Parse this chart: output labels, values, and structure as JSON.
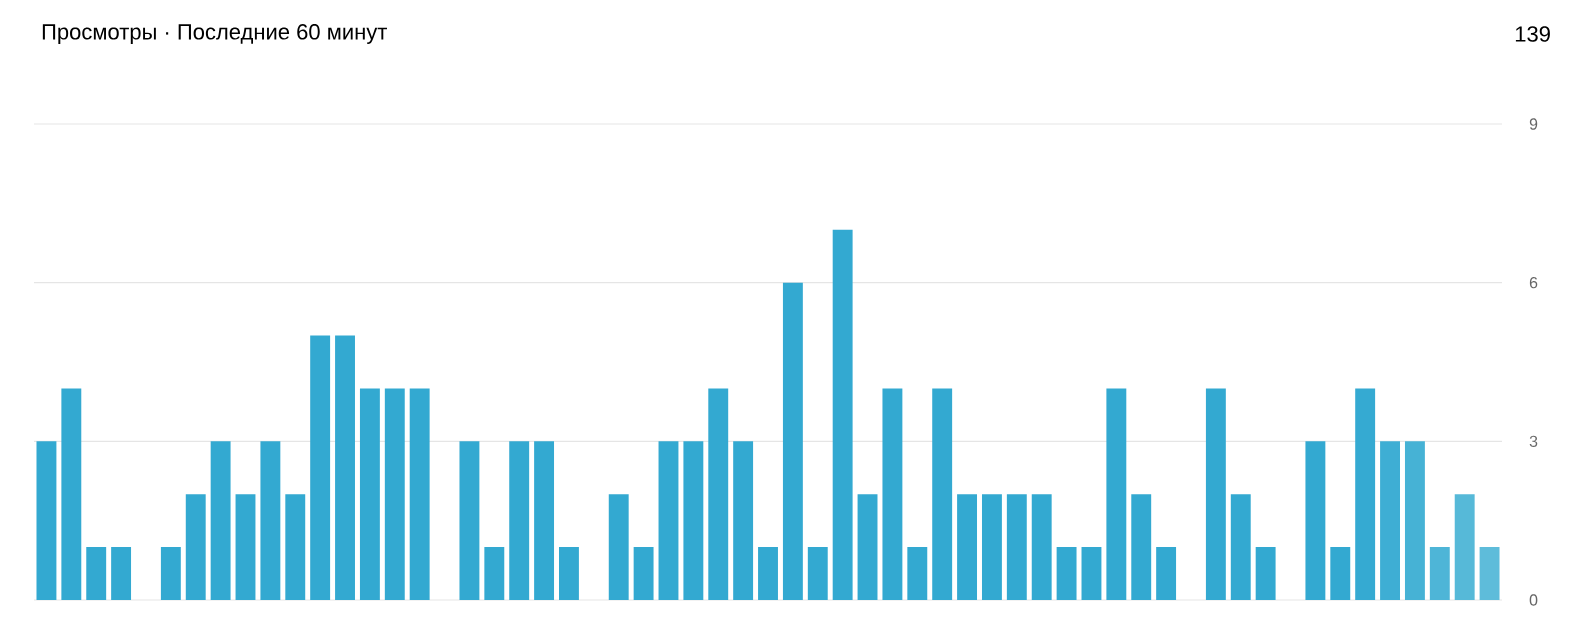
{
  "chart_data": {
    "type": "bar",
    "title": "Просмотры · Последние 60 минут",
    "annotations": [
      "139"
    ],
    "categories": [
      null,
      null,
      null,
      null,
      null,
      null,
      null,
      null,
      null,
      null,
      null,
      null,
      null,
      null,
      null,
      null,
      null,
      null,
      null,
      null,
      null,
      null,
      null,
      null,
      null,
      null,
      null,
      null,
      null,
      null,
      null,
      null,
      null,
      null,
      null,
      null,
      null,
      null,
      null,
      null,
      null,
      null,
      null,
      null,
      null,
      null,
      null,
      null,
      null,
      null,
      null,
      null,
      null,
      null,
      null,
      null,
      null,
      null,
      null
    ],
    "values": [
      3,
      4,
      1,
      1,
      0,
      1,
      2,
      3,
      2,
      3,
      2,
      5,
      5,
      4,
      4,
      4,
      0,
      3,
      1,
      3,
      3,
      1,
      0,
      2,
      1,
      3,
      3,
      4,
      3,
      1,
      6,
      1,
      7,
      2,
      4,
      1,
      4,
      2,
      2,
      2,
      2,
      1,
      1,
      4,
      2,
      1,
      0,
      4,
      2,
      1,
      0,
      3,
      1,
      4,
      3,
      3,
      1,
      2,
      1
    ],
    "colors": [
      "#33a9d1",
      "#33a9d1",
      "#33a9d1",
      "#33a9d1",
      "#33a9d1",
      "#33a9d1",
      "#33a9d1",
      "#33a9d1",
      "#33a9d1",
      "#33a9d1",
      "#33a9d1",
      "#33a9d1",
      "#33a9d1",
      "#33a9d1",
      "#33a9d1",
      "#33a9d1",
      "#33a9d1",
      "#33a9d1",
      "#33a9d1",
      "#33a9d1",
      "#33a9d1",
      "#33a9d1",
      "#33a9d1",
      "#33a9d1",
      "#33a9d1",
      "#33a9d1",
      "#33a9d1",
      "#33a9d1",
      "#33a9d1",
      "#33a9d1",
      "#33a9d1",
      "#33a9d1",
      "#33a9d1",
      "#33a9d1",
      "#33a9d1",
      "#33a9d1",
      "#33a9d1",
      "#33a9d1",
      "#33a9d1",
      "#33a9d1",
      "#33a9d1",
      "#33a9d1",
      "#33a9d1",
      "#33a9d1",
      "#33a9d1",
      "#33a9d1",
      "#33a9d1",
      "#33a9d1",
      "#33a9d1",
      "#33a9d1",
      "#33a9d1",
      "#33a9d1",
      "#33a9d1",
      "#35aad2",
      "#3eaed4",
      "#46b2d5",
      "#4eb5d7",
      "#56b9d8",
      "#5ebcda"
    ],
    "ylim": [
      0,
      9
    ],
    "yticks": [
      0,
      3,
      6,
      9
    ],
    "grid": "y"
  }
}
